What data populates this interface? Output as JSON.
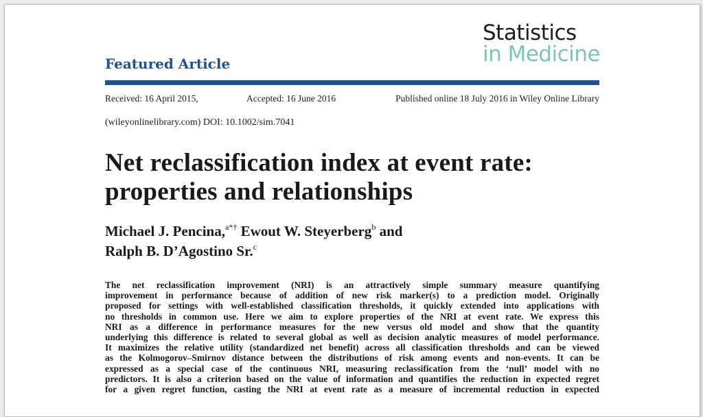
{
  "journal": {
    "name_line1": "Statistics",
    "name_line2": "in Medicine"
  },
  "section_label": "Featured Article",
  "dates": {
    "received": "Received: 16 April 2015,",
    "accepted": "Accepted: 16 June 2016",
    "published": "Published online 18 July 2016 in Wiley Online Library"
  },
  "doi_line": "(wileyonlinelibrary.com) DOI: 10.1002/sim.7041",
  "title": {
    "line1": "Net reclassification index at event rate:",
    "line2": "properties and relationships"
  },
  "authors": [
    {
      "name": "Michael J. Pencina,",
      "affil": "a*†"
    },
    {
      "name": "Ewout W. Steyerberg",
      "affil": "b"
    },
    {
      "connector": "and"
    },
    {
      "name": "Ralph B. D’Agostino Sr.",
      "affil": "c"
    }
  ],
  "abstract_lines": [
    "The net reclassification improvement (NRI) is an attractively simple summary measure quantifying",
    "improvement in performance because of addition of new risk marker(s) to a prediction model. Originally",
    "proposed for settings with well-established classification thresholds, it quickly extended into applications with",
    "no thresholds in common use. Here we aim to explore properties of the NRI at event rate. We express this",
    "NRI as a difference in performance measures for the new versus old model and show that the quantity",
    "underlying this difference is related to several global as well as decision analytic measures of model performance.",
    "It maximizes the relative utility (standardized net benefit) across all classification thresholds and can be viewed",
    "as the Kolmogorov–Smirnov distance between the distributions of risk among events and non-events. It can be",
    "expressed as a special case of the continuous NRI, measuring reclassification from the ‘null’ model with no",
    "predictors. It is also a criterion based on the value of information and quantifies the reduction in expected regret",
    "for a given regret function, casting the NRI at event rate as a measure of incremental reduction in expected"
  ]
}
